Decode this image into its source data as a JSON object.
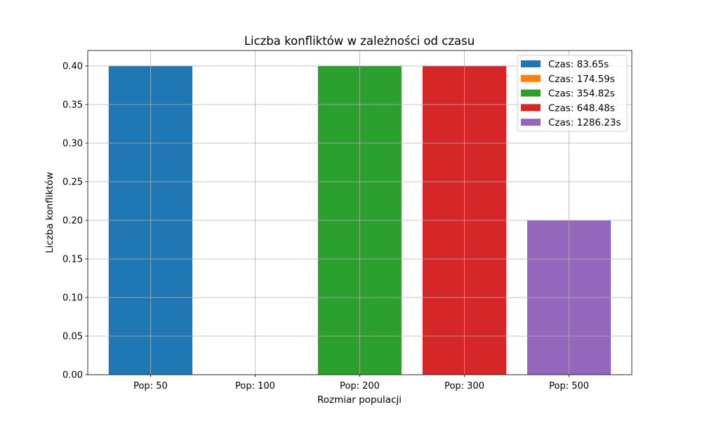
{
  "chart_data": {
    "type": "bar",
    "title": "Liczba konfliktów w zależności od czasu",
    "xlabel": "Rozmiar populacji",
    "ylabel": "Liczba konfliktów",
    "categories": [
      "Pop: 50",
      "Pop: 100",
      "Pop: 200",
      "Pop: 300",
      "Pop: 500"
    ],
    "series": [
      {
        "name": "Czas: 83.65s",
        "color": "#1f77b4",
        "values": [
          0.4,
          null,
          null,
          null,
          null
        ]
      },
      {
        "name": "Czas: 174.59s",
        "color": "#ff7f0e",
        "values": [
          null,
          0.0,
          null,
          null,
          null
        ]
      },
      {
        "name": "Czas: 354.82s",
        "color": "#2ca02c",
        "values": [
          null,
          null,
          0.4,
          null,
          null
        ]
      },
      {
        "name": "Czas: 648.48s",
        "color": "#d62728",
        "values": [
          null,
          null,
          null,
          0.4,
          null
        ]
      },
      {
        "name": "Czas: 1286.23s",
        "color": "#9467bd",
        "values": [
          null,
          null,
          null,
          null,
          0.2
        ]
      }
    ],
    "yticks": [
      "0.00",
      "0.05",
      "0.10",
      "0.15",
      "0.20",
      "0.25",
      "0.30",
      "0.35",
      "0.40"
    ],
    "ylim": [
      0,
      0.42
    ],
    "grid": true,
    "legend_position": "top-right"
  }
}
